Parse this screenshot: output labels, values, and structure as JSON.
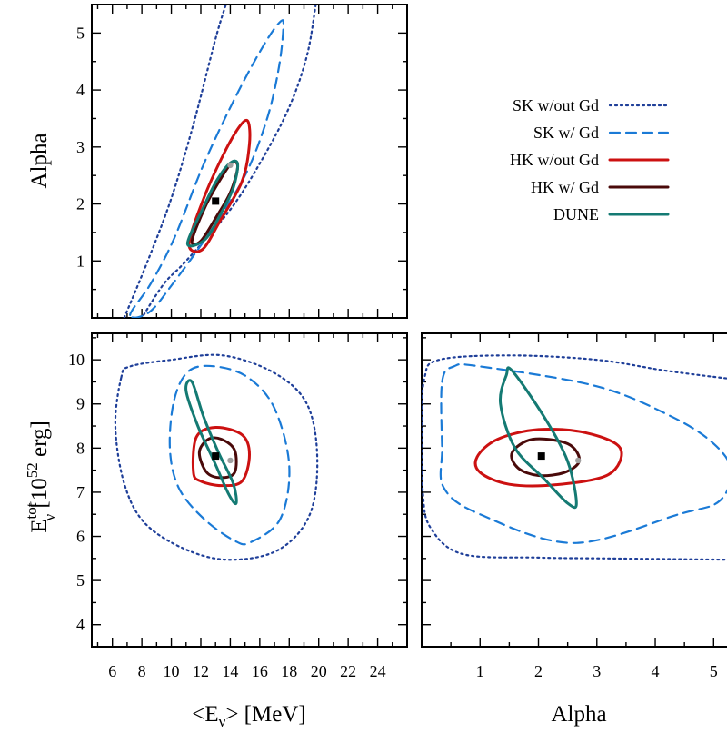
{
  "chart_data": {
    "type": "line",
    "legend": {
      "placement": "top-right",
      "entries": [
        {
          "id": "sk_wo",
          "label": "SK w/out Gd",
          "color": "#1f3f99",
          "style": "dotted"
        },
        {
          "id": "sk_w",
          "label": "SK w/ Gd",
          "color": "#1a7ad6",
          "style": "dashed"
        },
        {
          "id": "hk_wo",
          "label": "HK w/out Gd",
          "color": "#cc1111",
          "style": "solid"
        },
        {
          "id": "hk_w",
          "label": "HK w/ Gd",
          "color": "#4a0a0a",
          "style": "solid"
        },
        {
          "id": "dune",
          "label": "DUNE",
          "color": "#147a73",
          "style": "solid"
        }
      ]
    },
    "axes": {
      "E_mean": {
        "label_text": "<E",
        "label_sub": "ν",
        "label_tail": "> [MeV]",
        "range": [
          4.6,
          26
        ],
        "ticks": [
          "6",
          "8",
          "10",
          "12",
          "14",
          "16",
          "18",
          "20",
          "22",
          "24"
        ]
      },
      "Alpha": {
        "label": "Alpha",
        "range_top": [
          0,
          5.5
        ],
        "ticks_top": [
          "1",
          "2",
          "3",
          "4",
          "5"
        ],
        "range_bottom": [
          0,
          5.4
        ],
        "ticks_bottom": [
          "1",
          "2",
          "3",
          "4",
          "5"
        ]
      },
      "E_tot": {
        "label_main": "E",
        "label_sub": "ν",
        "label_sup": "tot",
        "label_tail": " [10",
        "label_exp": "52",
        "label_end": " erg]",
        "range": [
          3.5,
          10.6
        ],
        "ticks": [
          "4",
          "5",
          "6",
          "7",
          "8",
          "9",
          "10"
        ]
      }
    },
    "best_fit": {
      "E_mean": 13.0,
      "Alpha": 2.05,
      "E_tot": 7.82
    },
    "alt_point": {
      "E_mean": 14.0,
      "Alpha": 2.68,
      "E_tot": 7.72
    },
    "panels": [
      {
        "id": "mean_vs_alpha",
        "x": "E_mean",
        "y": "Alpha",
        "contours": [
          {
            "series": "sk_wo",
            "points": [
              [
                6.8,
                0
              ],
              [
                8.4,
                1.0
              ],
              [
                10.0,
                2.1
              ],
              [
                11.5,
                3.4
              ],
              [
                13.0,
                4.9
              ],
              [
                13.7,
                5.5
              ]
            ]
          },
          {
            "series": "sk_wo",
            "points": [
              [
                19.8,
                5.5
              ],
              [
                19.2,
                4.6
              ],
              [
                18.0,
                3.7
              ],
              [
                16.2,
                2.8
              ],
              [
                14.0,
                1.9
              ],
              [
                11.0,
                1.0
              ],
              [
                9.5,
                0.6
              ],
              [
                8.0,
                0
              ]
            ]
          },
          {
            "series": "sk_w",
            "closed": true,
            "points": [
              [
                7.2,
                0.05
              ],
              [
                8.6,
                0.6
              ],
              [
                10.2,
                1.4
              ],
              [
                12.2,
                2.7
              ],
              [
                14.4,
                3.9
              ],
              [
                16.3,
                4.8
              ],
              [
                17.4,
                5.2
              ],
              [
                17.6,
                5.1
              ],
              [
                17.3,
                4.4
              ],
              [
                16.5,
                3.5
              ],
              [
                15.0,
                2.5
              ],
              [
                12.6,
                1.5
              ],
              [
                10.1,
                0.6
              ],
              [
                8.5,
                0.1
              ]
            ]
          },
          {
            "series": "hk_wo",
            "closed": true,
            "points": [
              [
                11.2,
                1.3
              ],
              [
                12.2,
                2.1
              ],
              [
                13.5,
                2.85
              ],
              [
                14.6,
                3.35
              ],
              [
                15.2,
                3.45
              ],
              [
                15.3,
                3.05
              ],
              [
                14.8,
                2.4
              ],
              [
                13.3,
                1.7
              ],
              [
                12.1,
                1.2
              ]
            ]
          },
          {
            "series": "hk_w",
            "closed": true,
            "points": [
              [
                11.4,
                1.35
              ],
              [
                12.3,
                1.95
              ],
              [
                13.3,
                2.42
              ],
              [
                14.1,
                2.72
              ],
              [
                14.5,
                2.65
              ],
              [
                14.0,
                2.2
              ],
              [
                13.0,
                1.75
              ],
              [
                12.0,
                1.35
              ]
            ]
          },
          {
            "series": "dune",
            "closed": true,
            "points": [
              [
                11.1,
                1.3
              ],
              [
                12.1,
                1.9
              ],
              [
                13.1,
                2.42
              ],
              [
                14.0,
                2.72
              ],
              [
                14.5,
                2.7
              ],
              [
                14.2,
                2.28
              ],
              [
                13.4,
                1.85
              ],
              [
                12.3,
                1.38
              ]
            ]
          }
        ]
      },
      {
        "id": "mean_vs_etot",
        "x": "E_mean",
        "y": "E_tot",
        "contours": [
          {
            "series": "sk_wo",
            "closed": true,
            "points": [
              [
                6.6,
                9.6
              ],
              [
                7.2,
                9.85
              ],
              [
                10.0,
                10.0
              ],
              [
                13.5,
                10.1
              ],
              [
                17.0,
                9.7
              ],
              [
                19.2,
                9.0
              ],
              [
                19.9,
                7.8
              ],
              [
                19.4,
                6.5
              ],
              [
                17.3,
                5.7
              ],
              [
                14.0,
                5.47
              ],
              [
                11.0,
                5.7
              ],
              [
                8.2,
                6.3
              ],
              [
                6.8,
                7.2
              ],
              [
                6.2,
                8.5
              ]
            ]
          },
          {
            "series": "sk_w",
            "closed": true,
            "points": [
              [
                10.2,
                9.1
              ],
              [
                11.2,
                9.75
              ],
              [
                13.0,
                9.85
              ],
              [
                15.2,
                9.6
              ],
              [
                17.0,
                8.9
              ],
              [
                18.0,
                7.6
              ],
              [
                17.4,
                6.4
              ],
              [
                15.4,
                5.87
              ],
              [
                14.3,
                5.9
              ],
              [
                12.2,
                6.4
              ],
              [
                10.5,
                7.1
              ],
              [
                9.9,
                8.0
              ]
            ]
          },
          {
            "series": "hk_wo",
            "closed": true,
            "points": [
              [
                11.5,
                7.45
              ],
              [
                11.7,
                8.25
              ],
              [
                13.0,
                8.47
              ],
              [
                14.8,
                8.3
              ],
              [
                15.3,
                7.85
              ],
              [
                14.8,
                7.25
              ],
              [
                13.4,
                7.15
              ],
              [
                12.0,
                7.25
              ]
            ]
          },
          {
            "series": "hk_w",
            "closed": true,
            "points": [
              [
                11.9,
                7.9
              ],
              [
                12.5,
                8.2
              ],
              [
                13.4,
                8.2
              ],
              [
                14.3,
                7.95
              ],
              [
                14.3,
                7.45
              ],
              [
                13.4,
                7.33
              ],
              [
                12.4,
                7.45
              ]
            ]
          },
          {
            "series": "dune",
            "closed": true,
            "points": [
              [
                11.0,
                9.3
              ],
              [
                11.4,
                9.5
              ],
              [
                12.2,
                8.7
              ],
              [
                13.2,
                7.9
              ],
              [
                14.2,
                7.2
              ],
              [
                14.4,
                6.75
              ],
              [
                13.9,
                6.95
              ],
              [
                12.9,
                7.7
              ],
              [
                11.8,
                8.5
              ]
            ]
          }
        ]
      },
      {
        "id": "alpha_vs_etot",
        "x": "Alpha",
        "y": "E_tot",
        "contours": [
          {
            "series": "sk_wo",
            "points": [
              [
                5.4,
                9.55
              ],
              [
                4.2,
                9.75
              ],
              [
                3.0,
                10.0
              ],
              [
                1.5,
                10.1
              ],
              [
                0.3,
                10.0
              ],
              [
                0.05,
                9.6
              ],
              [
                0.0,
                8.5
              ],
              [
                0.02,
                7.0
              ],
              [
                0.15,
                6.2
              ],
              [
                0.7,
                5.6
              ],
              [
                2.0,
                5.52
              ],
              [
                3.2,
                5.5
              ],
              [
                5.4,
                5.47
              ]
            ]
          },
          {
            "series": "sk_w",
            "closed": true,
            "points": [
              [
                0.35,
                9.5
              ],
              [
                0.55,
                9.85
              ],
              [
                1.0,
                9.85
              ],
              [
                3.0,
                9.4
              ],
              [
                4.3,
                8.7
              ],
              [
                5.0,
                8.1
              ],
              [
                5.3,
                7.5
              ],
              [
                5.1,
                6.8
              ],
              [
                4.4,
                6.5
              ],
              [
                2.6,
                5.85
              ],
              [
                1.0,
                6.5
              ],
              [
                0.38,
                7.1
              ],
              [
                0.35,
                8.0
              ]
            ]
          },
          {
            "series": "hk_wo",
            "closed": true,
            "points": [
              [
                0.95,
                7.8
              ],
              [
                1.3,
                8.2
              ],
              [
                2.0,
                8.42
              ],
              [
                2.8,
                8.35
              ],
              [
                3.4,
                8.0
              ],
              [
                3.2,
                7.4
              ],
              [
                2.3,
                7.17
              ],
              [
                1.5,
                7.18
              ],
              [
                1.0,
                7.45
              ]
            ]
          },
          {
            "series": "hk_w",
            "closed": true,
            "points": [
              [
                1.55,
                7.9
              ],
              [
                1.9,
                8.2
              ],
              [
                2.5,
                8.1
              ],
              [
                2.7,
                7.72
              ],
              [
                2.45,
                7.45
              ],
              [
                2.0,
                7.38
              ],
              [
                1.65,
                7.55
              ]
            ]
          },
          {
            "series": "dune",
            "closed": true,
            "points": [
              [
                1.45,
                9.65
              ],
              [
                1.55,
                9.75
              ],
              [
                2.1,
                8.7
              ],
              [
                2.5,
                7.7
              ],
              [
                2.65,
                6.75
              ],
              [
                2.5,
                6.75
              ],
              [
                2.1,
                7.3
              ],
              [
                1.6,
                8.0
              ],
              [
                1.35,
                9.0
              ]
            ]
          }
        ]
      }
    ]
  }
}
